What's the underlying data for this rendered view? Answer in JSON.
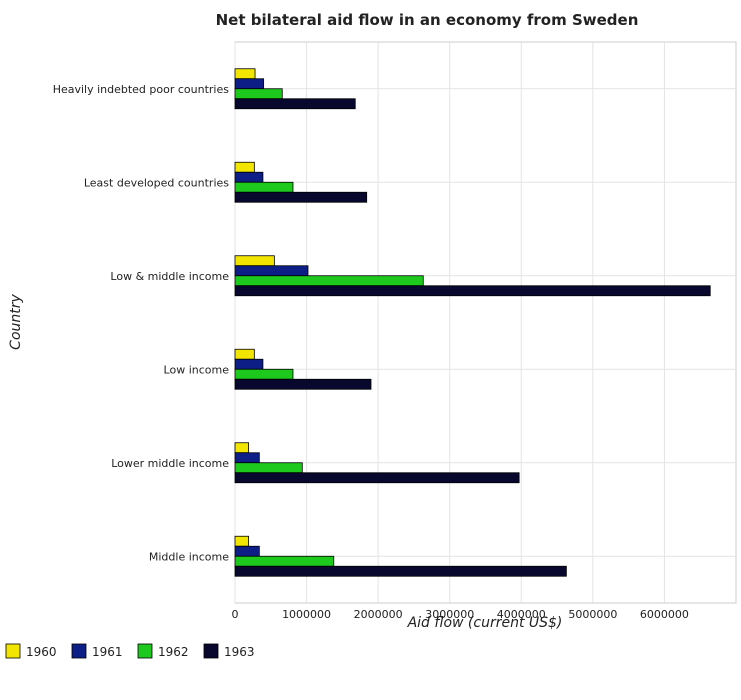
{
  "chart_data": {
    "type": "bar",
    "orientation": "horizontal",
    "title": "Net bilateral aid flow in an economy from Sweden",
    "xlabel": "Aid flow (current US$)",
    "ylabel": "Country",
    "xlim": [
      0,
      7000000
    ],
    "xticks": [
      0,
      1000000,
      2000000,
      3000000,
      4000000,
      5000000,
      6000000
    ],
    "xtick_labels": [
      "0",
      "1000000",
      "2000000",
      "3000000",
      "4000000",
      "5000000",
      "6000000"
    ],
    "grid": true,
    "legend_position": "bottom-left",
    "categories": [
      "Heavily indebted poor countries",
      "Least developed countries",
      "Low & middle income",
      "Low income",
      "Lower middle income",
      "Middle income"
    ],
    "series": [
      {
        "name": "1960",
        "color": "#f2e600",
        "values": [
          280000,
          270000,
          550000,
          270000,
          190000,
          190000
        ]
      },
      {
        "name": "1961",
        "color": "#0d1f87",
        "values": [
          400000,
          390000,
          1020000,
          390000,
          340000,
          340000
        ]
      },
      {
        "name": "1962",
        "color": "#1ec91e",
        "values": [
          660000,
          810000,
          2630000,
          810000,
          940000,
          1380000
        ]
      },
      {
        "name": "1963",
        "color": "#08082e",
        "values": [
          1680000,
          1840000,
          6640000,
          1900000,
          3970000,
          4630000
        ]
      }
    ]
  }
}
